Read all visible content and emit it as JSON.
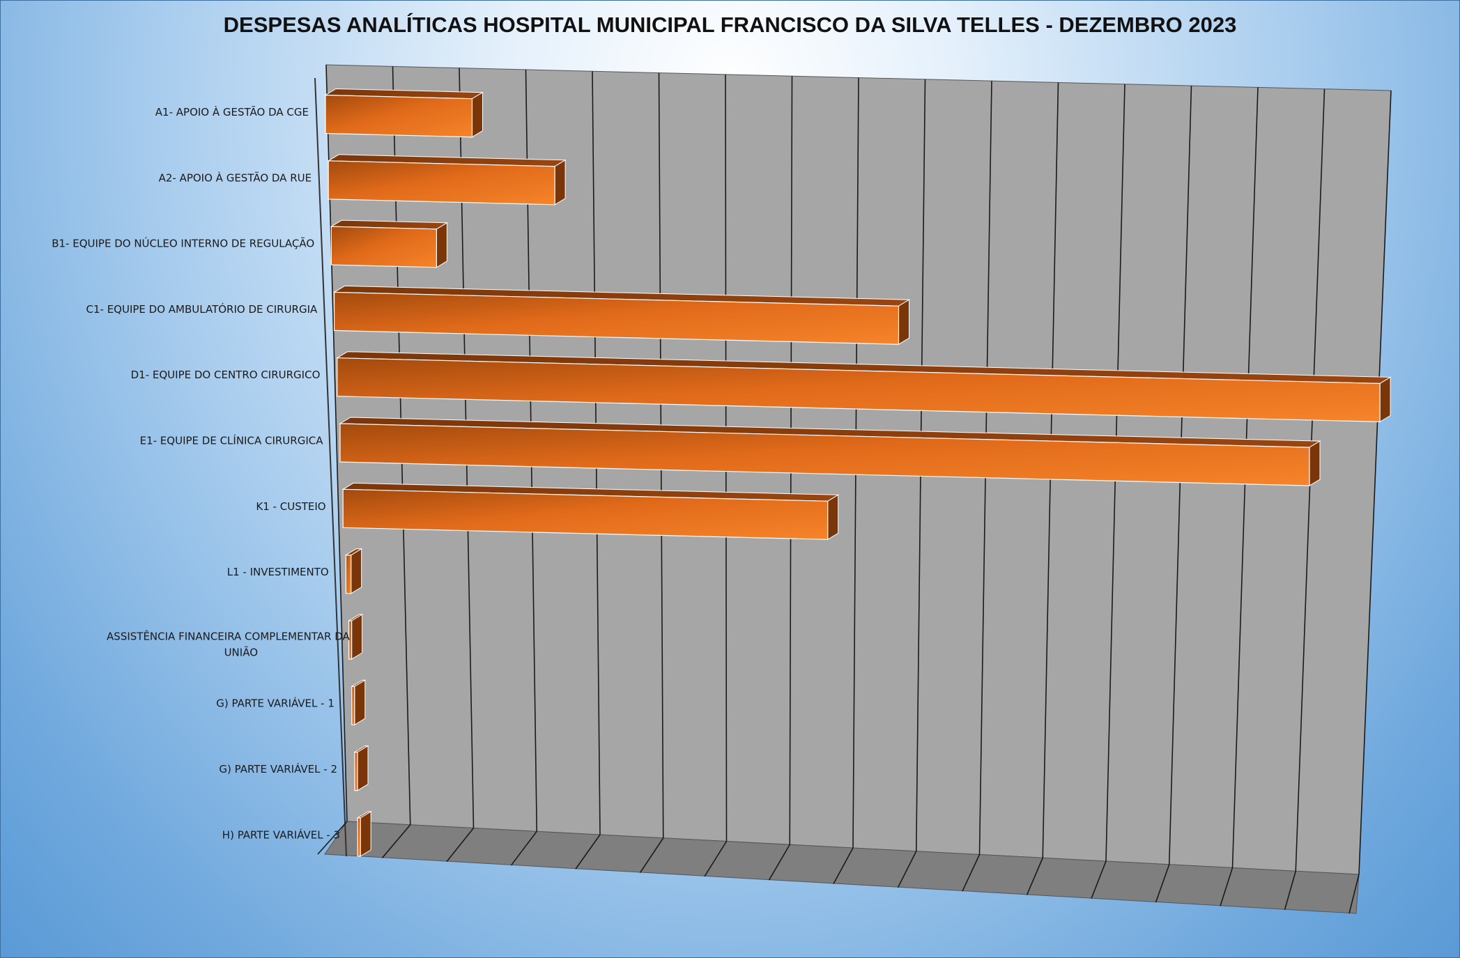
{
  "chart_data": {
    "type": "bar",
    "orientation": "horizontal",
    "style": "3d",
    "title": "DESPESAS ANALÍTICAS HOSPITAL MUNICIPAL FRANCISCO DA SILVA TELLES - DEZEMBRO 2023",
    "xlabel": "",
    "ylabel": "",
    "grid": true,
    "legend": "none",
    "categories": [
      "A1- APOIO À GESTÃO DA CGE",
      "A2- APOIO À GESTÃO DA RUE",
      "B1- EQUIPE DO NÚCLEO INTERNO DE REGULAÇÃO",
      "C1- EQUIPE DO AMBULATÓRIO DE CIRURGIA",
      "D1- EQUIPE DO CENTRO CIRURGICO",
      "E1- EQUIPE DE CLÍNICA CIRURGICA",
      "K1 - CUSTEIO",
      "L1 - INVESTIMENTO",
      [
        "ASSISTÊNCIA FINANCEIRA COMPLEMENTAR DA",
        "UNIÃO"
      ],
      "G) PARTE VARIÁVEL - 1",
      "G) PARTE VARIÁVEL - 2",
      "H) PARTE VARIÁVEL - 3"
    ],
    "values": [
      2.3,
      3.55,
      1.65,
      8.85,
      16.35,
      15.2,
      7.6,
      0.08,
      0,
      0,
      0,
      0
    ],
    "xlim": [
      0,
      16.5
    ],
    "colors": {
      "bar_front": "#f27a22",
      "bar_front_dark": "#b9560f",
      "bar_top": "#8a3f0c",
      "bar_side": "#7a3508",
      "wall": "#a6a6a6",
      "floor": "#7f7f7f"
    }
  }
}
